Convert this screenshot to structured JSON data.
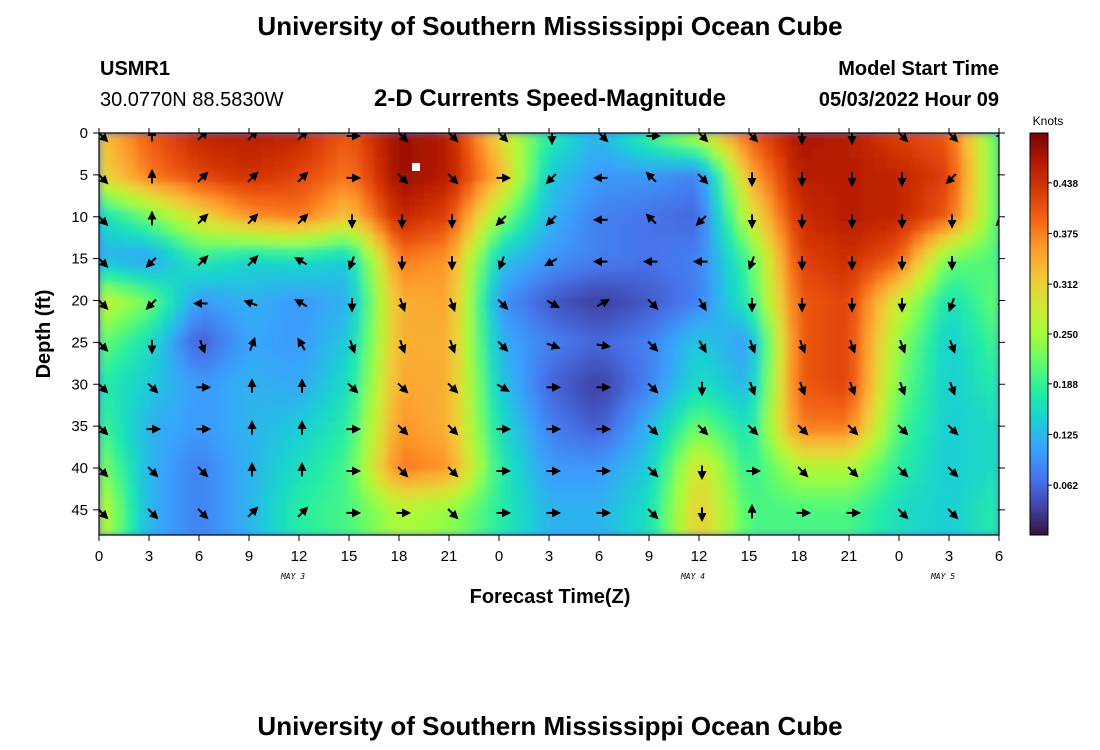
{
  "header": {
    "title": "University of Southern Mississippi Ocean Cube",
    "station_id": "USMR1",
    "location": "30.0770N  88.5830W",
    "subtitle": "2-D Currents Speed-Magnitude",
    "model_label": "Model Start Time",
    "model_time": "05/03/2022 Hour 09"
  },
  "footer": {
    "title": "University of Southern Mississippi Ocean Cube"
  },
  "chart_data": {
    "type": "heatmap",
    "title": "2-D Currents Speed-Magnitude",
    "xlabel": "Forecast Time(Z)",
    "ylabel": "Depth (ft)",
    "x_ticks": [
      "0",
      "3",
      "6",
      "9",
      "12",
      "15",
      "18",
      "21",
      "0",
      "3",
      "6",
      "9",
      "12",
      "15",
      "18",
      "21",
      "0",
      "3",
      "6"
    ],
    "x_tick_hours": [
      0,
      3,
      6,
      9,
      12,
      15,
      18,
      21,
      24,
      27,
      30,
      33,
      36,
      39,
      42,
      45,
      48,
      51,
      54
    ],
    "date_labels": [
      {
        "label": "MAY 3",
        "hour": 12
      },
      {
        "label": "MAY 4",
        "hour": 36
      },
      {
        "label": "MAY 5",
        "hour": 51
      }
    ],
    "xlim_hours": [
      0,
      54
    ],
    "y_ticks": [
      0,
      5,
      10,
      15,
      20,
      25,
      30,
      35,
      40,
      45
    ],
    "ylim": [
      0,
      48
    ],
    "y_inverted": true,
    "colorbar": {
      "title": "Knots",
      "ticks": [
        "0.438",
        "0.375",
        "0.312",
        "0.250",
        "0.188",
        "0.125",
        "0.062"
      ],
      "range": [
        0,
        0.5
      ],
      "colors": [
        "#30123b",
        "#4145ab",
        "#4675ed",
        "#39a2fc",
        "#1bcfd4",
        "#24eca6",
        "#61fc6c",
        "#a4fc3b",
        "#d1e834",
        "#f3c63a",
        "#fe9b2d",
        "#f36315",
        "#d93806",
        "#b11901",
        "#7a0402"
      ]
    },
    "grid_hours": [
      0,
      3,
      6,
      9,
      12,
      15,
      18,
      21,
      24,
      27,
      30,
      33,
      36,
      39,
      42,
      45,
      48,
      51,
      54
    ],
    "grid_depths": [
      0,
      5,
      10,
      15,
      20,
      25,
      30,
      35,
      40,
      45
    ],
    "speed_knots": [
      [
        0.32,
        0.4,
        0.45,
        0.46,
        0.45,
        0.4,
        0.48,
        0.46,
        0.3,
        0.18,
        0.12,
        0.2,
        0.28,
        0.4,
        0.47,
        0.46,
        0.42,
        0.4,
        0.2
      ],
      [
        0.3,
        0.38,
        0.42,
        0.44,
        0.42,
        0.38,
        0.48,
        0.46,
        0.34,
        0.14,
        0.1,
        0.1,
        0.08,
        0.34,
        0.46,
        0.46,
        0.45,
        0.42,
        0.2
      ],
      [
        0.15,
        0.22,
        0.3,
        0.36,
        0.38,
        0.32,
        0.45,
        0.42,
        0.24,
        0.12,
        0.08,
        0.07,
        0.06,
        0.28,
        0.44,
        0.46,
        0.45,
        0.4,
        0.2
      ],
      [
        0.12,
        0.1,
        0.18,
        0.15,
        0.16,
        0.14,
        0.38,
        0.36,
        0.14,
        0.1,
        0.08,
        0.07,
        0.08,
        0.2,
        0.42,
        0.44,
        0.4,
        0.22,
        0.2
      ],
      [
        0.28,
        0.22,
        0.1,
        0.12,
        0.1,
        0.12,
        0.34,
        0.35,
        0.1,
        0.05,
        0.03,
        0.05,
        0.08,
        0.18,
        0.4,
        0.42,
        0.28,
        0.16,
        0.22
      ],
      [
        0.22,
        0.16,
        0.05,
        0.11,
        0.1,
        0.14,
        0.34,
        0.34,
        0.12,
        0.08,
        0.06,
        0.08,
        0.14,
        0.1,
        0.4,
        0.42,
        0.24,
        0.14,
        0.2
      ],
      [
        0.18,
        0.14,
        0.1,
        0.12,
        0.11,
        0.16,
        0.35,
        0.34,
        0.14,
        0.06,
        0.03,
        0.08,
        0.16,
        0.12,
        0.4,
        0.42,
        0.22,
        0.14,
        0.18
      ],
      [
        0.2,
        0.12,
        0.1,
        0.12,
        0.14,
        0.18,
        0.36,
        0.34,
        0.16,
        0.08,
        0.05,
        0.12,
        0.22,
        0.16,
        0.38,
        0.38,
        0.2,
        0.14,
        0.16
      ],
      [
        0.24,
        0.12,
        0.08,
        0.12,
        0.16,
        0.2,
        0.38,
        0.36,
        0.18,
        0.1,
        0.1,
        0.14,
        0.3,
        0.18,
        0.26,
        0.26,
        0.18,
        0.14,
        0.16
      ],
      [
        0.28,
        0.12,
        0.08,
        0.12,
        0.18,
        0.2,
        0.26,
        0.24,
        0.18,
        0.12,
        0.12,
        0.16,
        0.32,
        0.2,
        0.2,
        0.2,
        0.16,
        0.14,
        0.18
      ]
    ],
    "direction_deg": [
      [
        135,
        0,
        45,
        45,
        45,
        90,
        135,
        135,
        135,
        180,
        135,
        90,
        135,
        135,
        180,
        180,
        135,
        135,
        90
      ],
      [
        135,
        0,
        45,
        45,
        45,
        90,
        135,
        135,
        90,
        225,
        270,
        315,
        135,
        180,
        180,
        180,
        180,
        225,
        135
      ],
      [
        135,
        0,
        45,
        45,
        45,
        180,
        180,
        180,
        225,
        225,
        270,
        315,
        225,
        180,
        180,
        180,
        180,
        180,
        225
      ],
      [
        135,
        225,
        45,
        45,
        300,
        200,
        180,
        180,
        200,
        240,
        270,
        270,
        270,
        200,
        180,
        180,
        180,
        180,
        180
      ],
      [
        135,
        225,
        270,
        290,
        300,
        180,
        160,
        160,
        135,
        120,
        60,
        135,
        150,
        180,
        180,
        180,
        180,
        200,
        180
      ],
      [
        135,
        180,
        160,
        20,
        330,
        160,
        160,
        160,
        135,
        110,
        100,
        135,
        150,
        160,
        160,
        160,
        160,
        160,
        160
      ],
      [
        135,
        135,
        90,
        0,
        0,
        135,
        135,
        135,
        120,
        90,
        90,
        135,
        180,
        160,
        160,
        160,
        160,
        160,
        160
      ],
      [
        135,
        90,
        90,
        0,
        0,
        90,
        135,
        135,
        90,
        90,
        90,
        135,
        135,
        135,
        135,
        135,
        135,
        135,
        135
      ],
      [
        135,
        135,
        135,
        0,
        0,
        90,
        135,
        135,
        90,
        90,
        90,
        135,
        180,
        90,
        135,
        135,
        135,
        135,
        135
      ],
      [
        135,
        135,
        135,
        45,
        45,
        90,
        90,
        135,
        90,
        90,
        90,
        135,
        180,
        0,
        90,
        90,
        135,
        135,
        135
      ]
    ]
  }
}
